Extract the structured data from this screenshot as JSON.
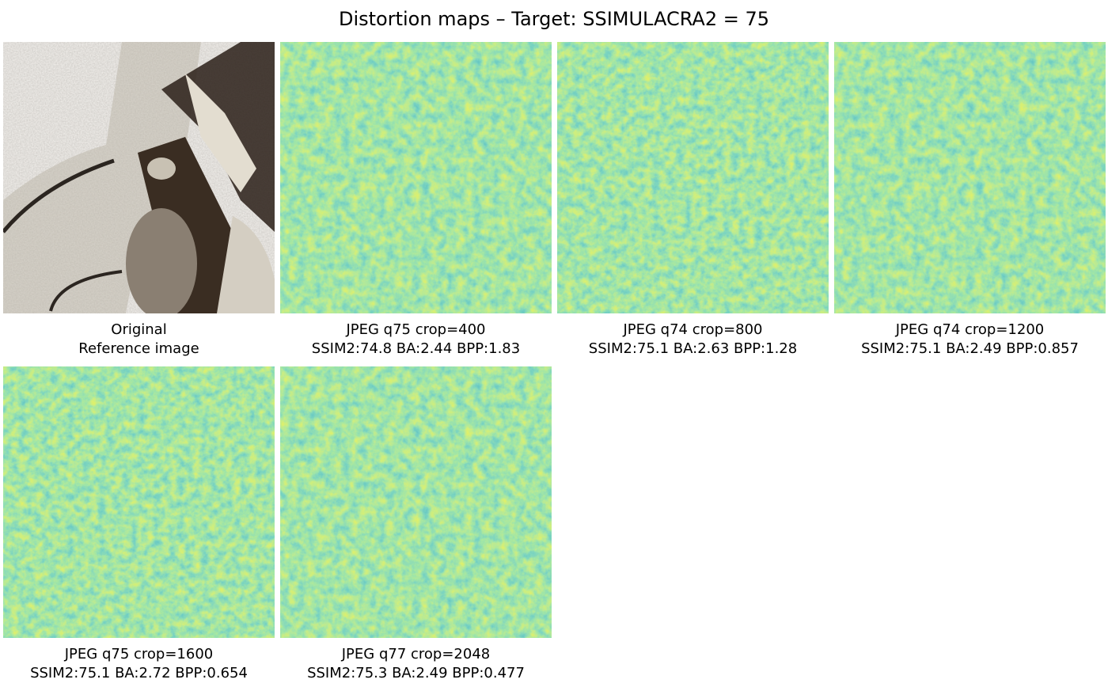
{
  "figure": {
    "title": "Distortion maps – Target: SSIMULACRA2 = 75",
    "colormap": "viridis",
    "colors": {
      "low": "#2a9d8a",
      "mid": "#5ec962",
      "high": "#d2e21b"
    },
    "panels": [
      {
        "kind": "original",
        "line1": "Original",
        "line2": "Reference image"
      },
      {
        "kind": "map",
        "line1": "JPEG q75 crop=400",
        "line2": "SSIM2:74.8 BA:2.44 BPP:1.83"
      },
      {
        "kind": "map",
        "line1": "JPEG q74 crop=800",
        "line2": "SSIM2:75.1 BA:2.63 BPP:1.28"
      },
      {
        "kind": "map",
        "line1": "JPEG q74 crop=1200",
        "line2": "SSIM2:75.1 BA:2.49 BPP:0.857"
      },
      {
        "kind": "map",
        "line1": "JPEG q75 crop=1600",
        "line2": "SSIM2:75.1 BA:2.72 BPP:0.654"
      },
      {
        "kind": "map",
        "line1": "JPEG q77 crop=2048",
        "line2": "SSIM2:75.3 BA:2.49 BPP:0.477"
      }
    ]
  }
}
